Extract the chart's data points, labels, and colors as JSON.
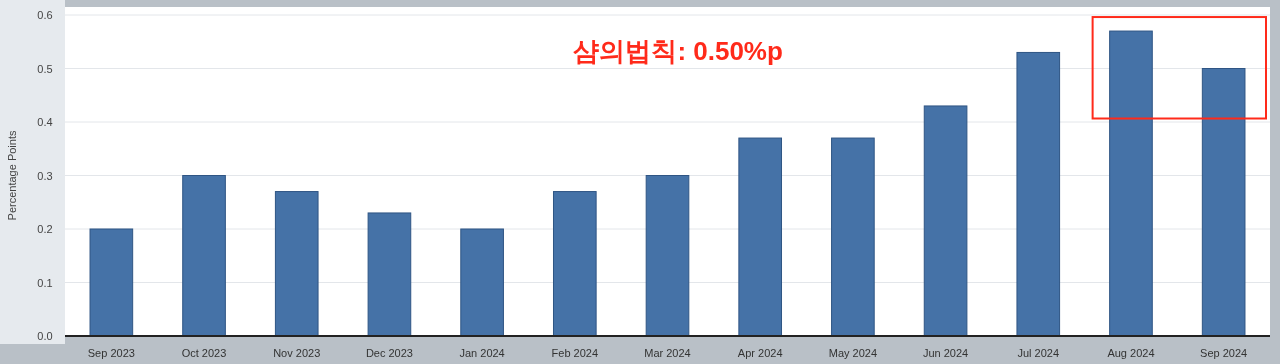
{
  "chart_data": {
    "type": "bar",
    "ylabel": "Percentage Points",
    "categories": [
      "Sep 2023",
      "Oct 2023",
      "Nov 2023",
      "Dec 2023",
      "Jan 2024",
      "Feb 2024",
      "Mar 2024",
      "Apr 2024",
      "May 2024",
      "Jun 2024",
      "Jul 2024",
      "Aug 2024",
      "Sep 2024"
    ],
    "values": [
      0.2,
      0.3,
      0.27,
      0.23,
      0.2,
      0.27,
      0.3,
      0.37,
      0.37,
      0.43,
      0.53,
      0.57,
      0.5
    ],
    "color": "#4572a7",
    "ylim": [
      0,
      0.6
    ],
    "yticks": [
      {
        "value": 0,
        "label": "0.0"
      },
      0.1,
      0.2,
      0.3,
      0.4,
      0.5,
      0.6
    ],
    "grid": "y",
    "annotations": [
      "샴의법칙: 0.50%p"
    ]
  }
}
